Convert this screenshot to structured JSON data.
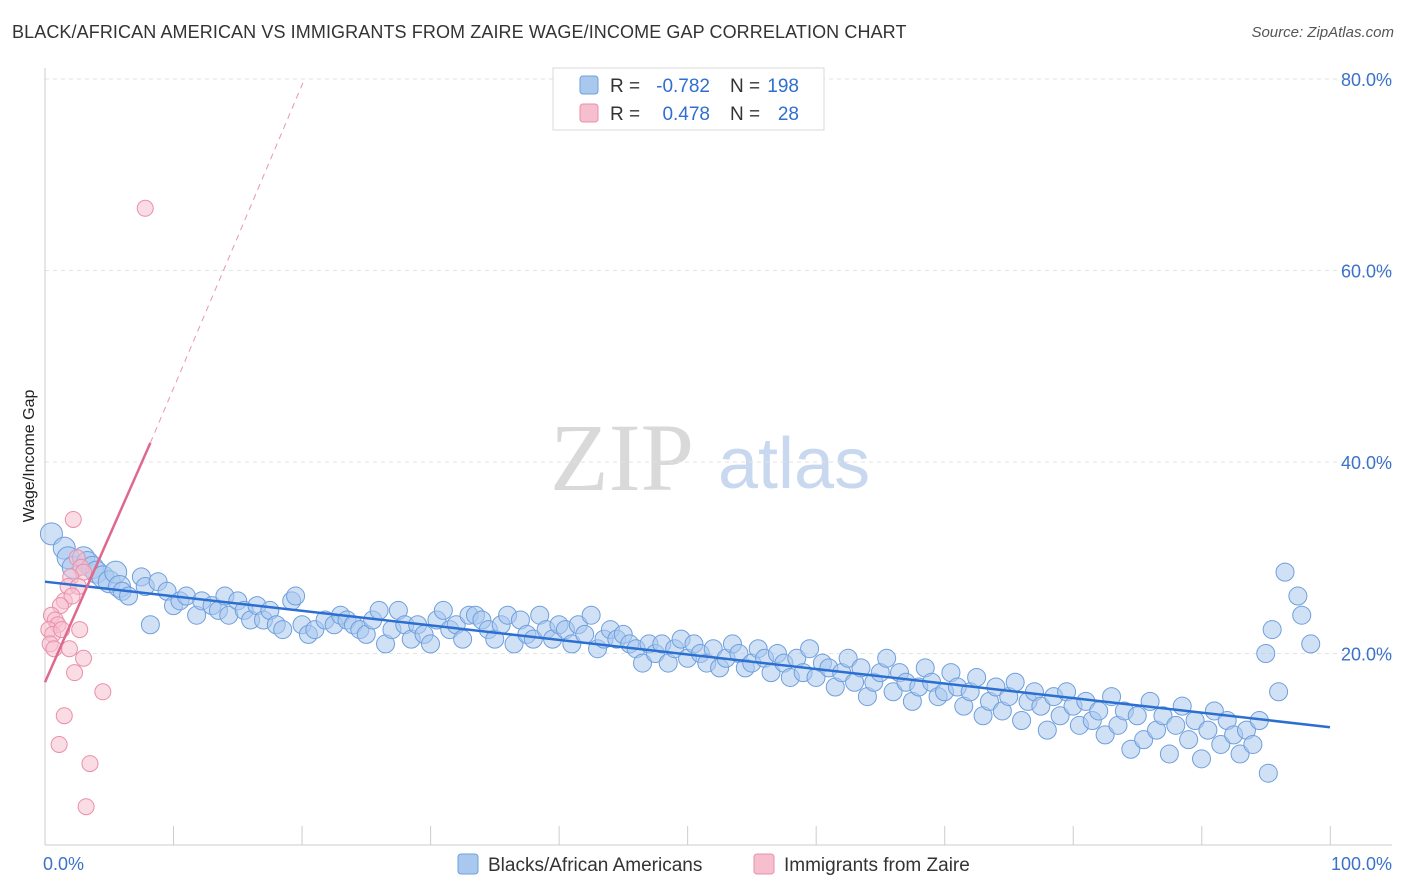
{
  "header": {
    "title": "BLACK/AFRICAN AMERICAN VS IMMIGRANTS FROM ZAIRE WAGE/INCOME GAP CORRELATION CHART",
    "source": "Source: ZipAtlas.com"
  },
  "watermark": {
    "zip": "ZIP",
    "atlas": "atlas"
  },
  "chart_data": {
    "type": "scatter",
    "title": "BLACK/AFRICAN AMERICAN VS IMMIGRANTS FROM ZAIRE WAGE/INCOME GAP CORRELATION CHART",
    "xlabel": "",
    "ylabel": "Wage/Income Gap",
    "xlim": [
      0,
      100
    ],
    "ylim": [
      0,
      80
    ],
    "x_tick_labels": {
      "min": "0.0%",
      "max": "100.0%"
    },
    "y_ticks": [
      {
        "value": 20,
        "label": "20.0%"
      },
      {
        "value": 40,
        "label": "40.0%"
      },
      {
        "value": 60,
        "label": "60.0%"
      },
      {
        "value": 80,
        "label": "80.0%"
      }
    ],
    "grid": true,
    "legend_top": [
      {
        "r_label": "R =",
        "r_value": "-0.782",
        "n_label": "N =",
        "n_value": "198"
      },
      {
        "r_label": "R =",
        "r_value": "0.478",
        "n_label": "N =",
        "n_value": "28"
      }
    ],
    "colors": {
      "blue_fill": "#a9c8ee",
      "blue_stroke": "#6f9fdc",
      "blue_line": "#2b6fd1",
      "pink_fill": "#f6bfcf",
      "pink_stroke": "#ea8fa9",
      "pink_line": "#e0688d"
    },
    "series": [
      {
        "name": "Blacks/African Americans",
        "color": "#a9c8ee",
        "trend": {
          "x": [
            0,
            100
          ],
          "y": [
            27.5,
            12.3
          ]
        },
        "points": [
          [
            0.5,
            32.5
          ],
          [
            1.5,
            31.0
          ],
          [
            1.8,
            30.0
          ],
          [
            2.2,
            29.0
          ],
          [
            3.0,
            30.0
          ],
          [
            3.3,
            29.5
          ],
          [
            3.7,
            29.0
          ],
          [
            4.0,
            28.5
          ],
          [
            4.5,
            28.0
          ],
          [
            5.0,
            27.5
          ],
          [
            5.5,
            28.5
          ],
          [
            5.8,
            27.0
          ],
          [
            6.0,
            26.5
          ],
          [
            6.5,
            26.0
          ],
          [
            7.5,
            28.0
          ],
          [
            7.8,
            27.0
          ],
          [
            8.2,
            23.0
          ],
          [
            8.8,
            27.5
          ],
          [
            9.5,
            26.5
          ],
          [
            10.0,
            25.0
          ],
          [
            10.5,
            25.5
          ],
          [
            11.0,
            26.0
          ],
          [
            11.8,
            24.0
          ],
          [
            12.2,
            25.5
          ],
          [
            13.0,
            25.0
          ],
          [
            13.5,
            24.5
          ],
          [
            14.0,
            26.0
          ],
          [
            14.3,
            24.0
          ],
          [
            15.0,
            25.5
          ],
          [
            15.5,
            24.5
          ],
          [
            16.0,
            23.5
          ],
          [
            16.5,
            25.0
          ],
          [
            17.0,
            23.5
          ],
          [
            17.5,
            24.5
          ],
          [
            18.0,
            23.0
          ],
          [
            18.5,
            22.5
          ],
          [
            19.2,
            25.5
          ],
          [
            19.5,
            26.0
          ],
          [
            20.0,
            23.0
          ],
          [
            20.5,
            22.0
          ],
          [
            21.0,
            22.5
          ],
          [
            21.8,
            23.5
          ],
          [
            22.5,
            23.0
          ],
          [
            23.0,
            24.0
          ],
          [
            23.5,
            23.5
          ],
          [
            24.0,
            23.0
          ],
          [
            24.5,
            22.5
          ],
          [
            25.0,
            22.0
          ],
          [
            25.5,
            23.5
          ],
          [
            26.0,
            24.5
          ],
          [
            26.5,
            21.0
          ],
          [
            27.0,
            22.5
          ],
          [
            27.5,
            24.5
          ],
          [
            28.0,
            23.0
          ],
          [
            28.5,
            21.5
          ],
          [
            29.0,
            23.0
          ],
          [
            29.5,
            22.0
          ],
          [
            30.0,
            21.0
          ],
          [
            30.5,
            23.5
          ],
          [
            31.0,
            24.5
          ],
          [
            31.5,
            22.5
          ],
          [
            32.0,
            23.0
          ],
          [
            32.5,
            21.5
          ],
          [
            33.0,
            24.0
          ],
          [
            33.5,
            24.0
          ],
          [
            34.0,
            23.5
          ],
          [
            34.5,
            22.5
          ],
          [
            35.0,
            21.5
          ],
          [
            35.5,
            23.0
          ],
          [
            36.0,
            24.0
          ],
          [
            36.5,
            21.0
          ],
          [
            37.0,
            23.5
          ],
          [
            37.5,
            22.0
          ],
          [
            38.0,
            21.5
          ],
          [
            38.5,
            24.0
          ],
          [
            39.0,
            22.5
          ],
          [
            39.5,
            21.5
          ],
          [
            40.0,
            23.0
          ],
          [
            40.5,
            22.5
          ],
          [
            41.0,
            21.0
          ],
          [
            41.5,
            23.0
          ],
          [
            42.0,
            22.0
          ],
          [
            42.5,
            24.0
          ],
          [
            43.0,
            20.5
          ],
          [
            43.5,
            21.5
          ],
          [
            44.0,
            22.5
          ],
          [
            44.5,
            21.5
          ],
          [
            45.0,
            22.0
          ],
          [
            45.5,
            21.0
          ],
          [
            46.0,
            20.5
          ],
          [
            46.5,
            19.0
          ],
          [
            47.0,
            21.0
          ],
          [
            47.5,
            20.0
          ],
          [
            48.0,
            21.0
          ],
          [
            48.5,
            19.0
          ],
          [
            49.0,
            20.5
          ],
          [
            49.5,
            21.5
          ],
          [
            50.0,
            19.5
          ],
          [
            50.5,
            21.0
          ],
          [
            51.0,
            20.0
          ],
          [
            51.5,
            19.0
          ],
          [
            52.0,
            20.5
          ],
          [
            52.5,
            18.5
          ],
          [
            53.0,
            19.5
          ],
          [
            53.5,
            21.0
          ],
          [
            54.0,
            20.0
          ],
          [
            54.5,
            18.5
          ],
          [
            55.0,
            19.0
          ],
          [
            55.5,
            20.5
          ],
          [
            56.0,
            19.5
          ],
          [
            56.5,
            18.0
          ],
          [
            57.0,
            20.0
          ],
          [
            57.5,
            19.0
          ],
          [
            58.0,
            17.5
          ],
          [
            58.5,
            19.5
          ],
          [
            59.0,
            18.0
          ],
          [
            59.5,
            20.5
          ],
          [
            60.0,
            17.5
          ],
          [
            60.5,
            19.0
          ],
          [
            61.0,
            18.5
          ],
          [
            61.5,
            16.5
          ],
          [
            62.0,
            18.0
          ],
          [
            62.5,
            19.5
          ],
          [
            63.0,
            17.0
          ],
          [
            63.5,
            18.5
          ],
          [
            64.0,
            15.5
          ],
          [
            64.5,
            17.0
          ],
          [
            65.0,
            18.0
          ],
          [
            65.5,
            19.5
          ],
          [
            66.0,
            16.0
          ],
          [
            66.5,
            18.0
          ],
          [
            67.0,
            17.0
          ],
          [
            67.5,
            15.0
          ],
          [
            68.0,
            16.5
          ],
          [
            68.5,
            18.5
          ],
          [
            69.0,
            17.0
          ],
          [
            69.5,
            15.5
          ],
          [
            70.0,
            16.0
          ],
          [
            70.5,
            18.0
          ],
          [
            71.0,
            16.5
          ],
          [
            71.5,
            14.5
          ],
          [
            72.0,
            16.0
          ],
          [
            72.5,
            17.5
          ],
          [
            73.0,
            13.5
          ],
          [
            73.5,
            15.0
          ],
          [
            74.0,
            16.5
          ],
          [
            74.5,
            14.0
          ],
          [
            75.0,
            15.5
          ],
          [
            75.5,
            17.0
          ],
          [
            76.0,
            13.0
          ],
          [
            76.5,
            15.0
          ],
          [
            77.0,
            16.0
          ],
          [
            77.5,
            14.5
          ],
          [
            78.0,
            12.0
          ],
          [
            78.5,
            15.5
          ],
          [
            79.0,
            13.5
          ],
          [
            79.5,
            16.0
          ],
          [
            80.0,
            14.5
          ],
          [
            80.5,
            12.5
          ],
          [
            81.0,
            15.0
          ],
          [
            81.5,
            13.0
          ],
          [
            82.0,
            14.0
          ],
          [
            82.5,
            11.5
          ],
          [
            83.0,
            15.5
          ],
          [
            83.5,
            12.5
          ],
          [
            84.0,
            14.0
          ],
          [
            84.5,
            10.0
          ],
          [
            85.0,
            13.5
          ],
          [
            85.5,
            11.0
          ],
          [
            86.0,
            15.0
          ],
          [
            86.5,
            12.0
          ],
          [
            87.0,
            13.5
          ],
          [
            87.5,
            9.5
          ],
          [
            88.0,
            12.5
          ],
          [
            88.5,
            14.5
          ],
          [
            89.0,
            11.0
          ],
          [
            89.5,
            13.0
          ],
          [
            90.0,
            9.0
          ],
          [
            90.5,
            12.0
          ],
          [
            91.0,
            14.0
          ],
          [
            91.5,
            10.5
          ],
          [
            92.0,
            13.0
          ],
          [
            92.5,
            11.5
          ],
          [
            93.0,
            9.5
          ],
          [
            93.5,
            12.0
          ],
          [
            94.0,
            10.5
          ],
          [
            94.5,
            13.0
          ],
          [
            95.0,
            20.0
          ],
          [
            95.5,
            22.5
          ],
          [
            96.5,
            28.5
          ],
          [
            97.5,
            26.0
          ],
          [
            97.8,
            24.0
          ],
          [
            98.5,
            21.0
          ],
          [
            96.0,
            16.0
          ],
          [
            95.2,
            7.5
          ]
        ]
      },
      {
        "name": "Immigrants from Zaire",
        "color": "#f6bfcf",
        "trend": {
          "x": [
            0,
            8.2
          ],
          "y": [
            17.0,
            42.0
          ]
        },
        "trend_extension": {
          "x": [
            8.2,
            20.2
          ],
          "y": [
            42.0,
            80.0
          ]
        },
        "points": [
          [
            7.8,
            66.5
          ],
          [
            2.2,
            34.0
          ],
          [
            2.5,
            30.0
          ],
          [
            2.8,
            29.0
          ],
          [
            3.0,
            28.5
          ],
          [
            2.0,
            28.0
          ],
          [
            1.8,
            27.0
          ],
          [
            2.6,
            27.0
          ],
          [
            1.5,
            25.5
          ],
          [
            2.1,
            26.0
          ],
          [
            1.2,
            25.0
          ],
          [
            0.5,
            24.0
          ],
          [
            0.8,
            23.5
          ],
          [
            1.0,
            23.0
          ],
          [
            0.3,
            22.5
          ],
          [
            0.6,
            22.0
          ],
          [
            1.3,
            22.5
          ],
          [
            2.7,
            22.5
          ],
          [
            0.4,
            21.0
          ],
          [
            0.7,
            20.5
          ],
          [
            3.0,
            19.5
          ],
          [
            2.3,
            18.0
          ],
          [
            4.5,
            16.0
          ],
          [
            1.5,
            13.5
          ],
          [
            1.1,
            10.5
          ],
          [
            3.5,
            8.5
          ],
          [
            3.2,
            4.0
          ],
          [
            1.9,
            20.5
          ]
        ]
      }
    ]
  },
  "bottom_legend": {
    "blue_label": "Blacks/African Americans",
    "pink_label": "Immigrants from Zaire"
  }
}
